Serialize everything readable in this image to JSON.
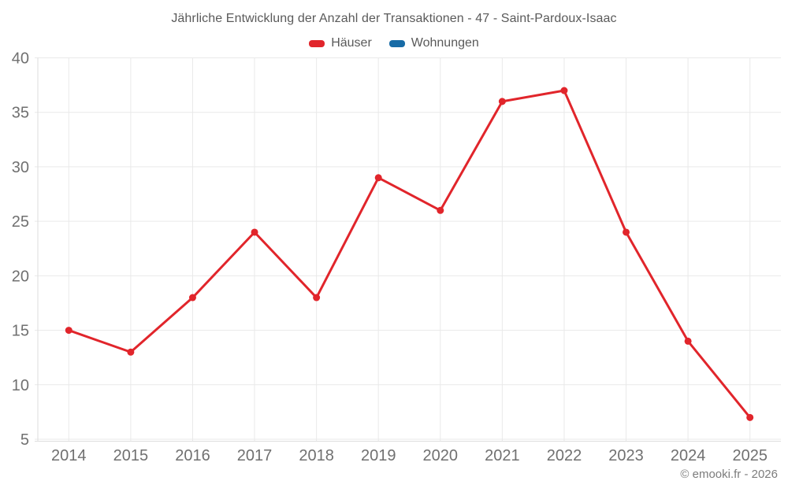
{
  "chart_data": {
    "type": "line",
    "title": "Jährliche Entwicklung der Anzahl der Transaktionen - 47 - Saint-Pardoux-Isaac",
    "categories": [
      "2014",
      "2015",
      "2016",
      "2017",
      "2018",
      "2019",
      "2020",
      "2021",
      "2022",
      "2023",
      "2024",
      "2025"
    ],
    "series": [
      {
        "name": "Häuser",
        "color": "#e1252b",
        "values": [
          15,
          13,
          18,
          24,
          18,
          29,
          26,
          36,
          37,
          24,
          14,
          7
        ]
      },
      {
        "name": "Wohnungen",
        "color": "#176ba6",
        "values": []
      }
    ],
    "ylim": [
      5,
      40
    ],
    "y_ticks": [
      5,
      10,
      15,
      20,
      25,
      30,
      35,
      40
    ],
    "grid": true,
    "legend_position": "top"
  },
  "footer": {
    "copyright": "© emooki.fr - 2026"
  }
}
